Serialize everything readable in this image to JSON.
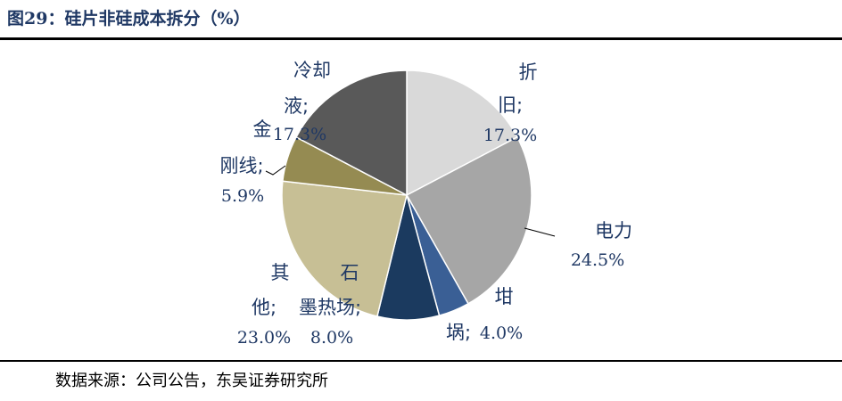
{
  "title": "图29：硅片非硅成本拆分（%）",
  "source": "数据来源：公司公告，东吴证券研究所",
  "chart_data": {
    "type": "pie",
    "slices": [
      {
        "name": "折旧",
        "value": 17.3,
        "color": "#d9d9d9",
        "label_lines": [
          "折",
          "旧;"
        ],
        "pct": "17.3%"
      },
      {
        "name": "电力",
        "value": 24.5,
        "color": "#a6a6a6",
        "label_lines": [
          "电力"
        ],
        "pct": "24.5%"
      },
      {
        "name": "坩埚",
        "value": 4.0,
        "color": "#3a5f95",
        "label_lines": [
          "坩",
          "埚;"
        ],
        "pct": "4.0%"
      },
      {
        "name": "石墨热场",
        "value": 8.0,
        "color": "#1b3a5f",
        "label_lines": [
          "石",
          "墨热场;"
        ],
        "pct": "8.0%"
      },
      {
        "name": "其他",
        "value": 23.0,
        "color": "#c7bf95",
        "label_lines": [
          "其",
          "他;"
        ],
        "pct": "23.0%"
      },
      {
        "name": "金刚线",
        "value": 5.9,
        "color": "#958b52",
        "label_lines": [
          "金",
          "刚线;"
        ],
        "pct": "5.9%"
      },
      {
        "name": "冷却液",
        "value": 17.3,
        "color": "#595959",
        "label_lines": [
          "冷却",
          "液;"
        ],
        "pct": "17.3%"
      }
    ]
  }
}
